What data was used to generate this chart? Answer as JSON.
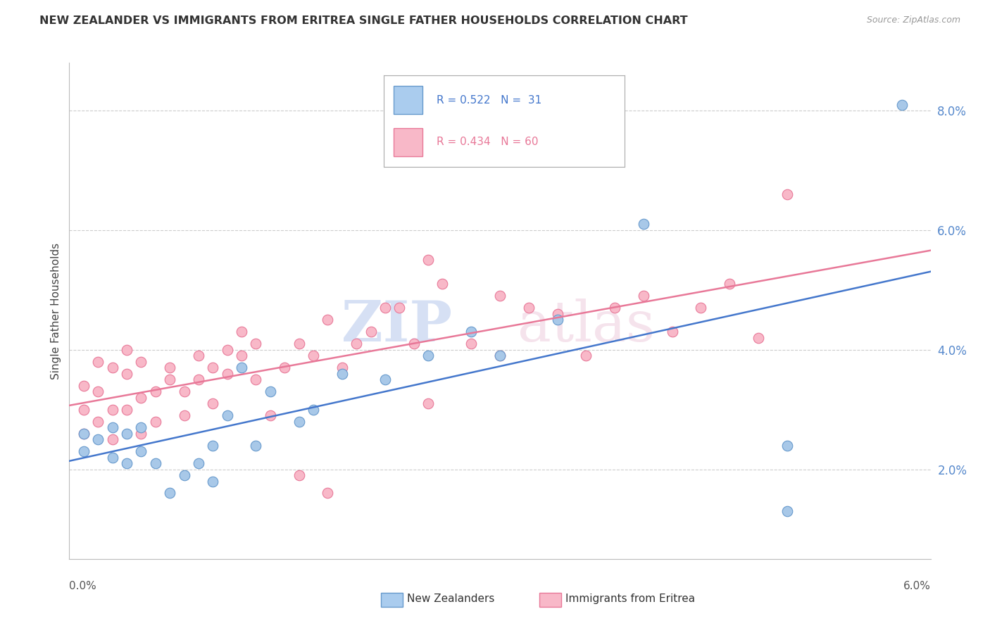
{
  "title": "NEW ZEALANDER VS IMMIGRANTS FROM ERITREA SINGLE FATHER HOUSEHOLDS CORRELATION CHART",
  "source": "Source: ZipAtlas.com",
  "ylabel": "Single Father Households",
  "xmin": 0.0,
  "xmax": 0.06,
  "ymin": 0.005,
  "ymax": 0.088,
  "yticks": [
    0.02,
    0.04,
    0.06,
    0.08
  ],
  "ytick_labels": [
    "2.0%",
    "4.0%",
    "6.0%",
    "8.0%"
  ],
  "nz_color": "#a8c8e8",
  "nz_edge": "#6699cc",
  "eritrea_color": "#f8b8c8",
  "eritrea_edge": "#e87898",
  "nz_line_color": "#4477cc",
  "er_line_color": "#e87898",
  "nz_x": [
    0.001,
    0.001,
    0.002,
    0.003,
    0.003,
    0.004,
    0.004,
    0.005,
    0.005,
    0.006,
    0.007,
    0.008,
    0.009,
    0.01,
    0.01,
    0.011,
    0.012,
    0.013,
    0.014,
    0.016,
    0.017,
    0.019,
    0.022,
    0.025,
    0.028,
    0.03,
    0.034,
    0.04,
    0.05,
    0.05,
    0.058
  ],
  "nz_y": [
    0.023,
    0.026,
    0.025,
    0.022,
    0.027,
    0.021,
    0.026,
    0.023,
    0.027,
    0.021,
    0.016,
    0.019,
    0.021,
    0.018,
    0.024,
    0.029,
    0.037,
    0.024,
    0.033,
    0.028,
    0.03,
    0.036,
    0.035,
    0.039,
    0.043,
    0.039,
    0.045,
    0.061,
    0.024,
    0.013,
    0.081
  ],
  "er_x": [
    0.001,
    0.001,
    0.001,
    0.002,
    0.002,
    0.002,
    0.003,
    0.003,
    0.003,
    0.004,
    0.004,
    0.004,
    0.005,
    0.005,
    0.005,
    0.006,
    0.006,
    0.007,
    0.007,
    0.008,
    0.008,
    0.009,
    0.009,
    0.01,
    0.01,
    0.011,
    0.011,
    0.012,
    0.012,
    0.013,
    0.013,
    0.014,
    0.015,
    0.016,
    0.017,
    0.018,
    0.019,
    0.02,
    0.021,
    0.022,
    0.023,
    0.024,
    0.025,
    0.026,
    0.028,
    0.03,
    0.032,
    0.034,
    0.036,
    0.038,
    0.04,
    0.042,
    0.044,
    0.046,
    0.048,
    0.05,
    0.025,
    0.03,
    0.018,
    0.016
  ],
  "er_y": [
    0.026,
    0.03,
    0.034,
    0.028,
    0.033,
    0.038,
    0.025,
    0.03,
    0.037,
    0.03,
    0.036,
    0.04,
    0.026,
    0.032,
    0.038,
    0.028,
    0.033,
    0.035,
    0.037,
    0.029,
    0.033,
    0.035,
    0.039,
    0.031,
    0.037,
    0.04,
    0.036,
    0.043,
    0.039,
    0.041,
    0.035,
    0.029,
    0.037,
    0.041,
    0.039,
    0.045,
    0.037,
    0.041,
    0.043,
    0.047,
    0.047,
    0.041,
    0.031,
    0.051,
    0.041,
    0.039,
    0.047,
    0.046,
    0.039,
    0.047,
    0.049,
    0.043,
    0.047,
    0.051,
    0.042,
    0.066,
    0.055,
    0.049,
    0.016,
    0.019
  ],
  "background_color": "#ffffff",
  "grid_color": "#cccccc",
  "title_color": "#333333"
}
